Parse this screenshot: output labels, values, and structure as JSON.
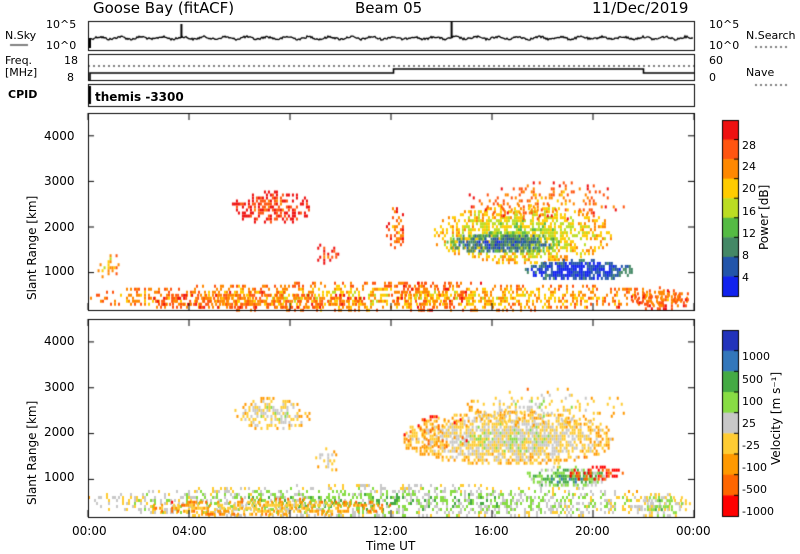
{
  "header": {
    "station": "Goose Bay (fitACF)",
    "beam": "Beam 05",
    "date": "11/Dec/2019"
  },
  "noise_panel": {
    "left_label": "N.Sky",
    "left_ticks": [
      "10^5",
      "10^0"
    ],
    "right_label": "N.Search",
    "right_ticks": [
      "10^5",
      "10^0"
    ]
  },
  "freq_panel": {
    "left_label_line1": "Freq.",
    "left_label_line2": "[MHz]",
    "left_ticks": [
      "18",
      "8"
    ],
    "right_label": "Nave",
    "right_ticks": [
      "60",
      "0"
    ]
  },
  "cpid": {
    "label": "CPID",
    "value": "themis -3300"
  },
  "y_axis": {
    "label": "Slant Range [km]",
    "ticks": [
      "4000",
      "3000",
      "2000",
      "1000"
    ]
  },
  "x_axis": {
    "label": "Time UT",
    "ticks": [
      "00:00",
      "04:00",
      "08:00",
      "12:00",
      "16:00",
      "20:00",
      "00:00"
    ]
  },
  "power_bar": {
    "title": "Power [dB]",
    "ticks": [
      "28",
      "24",
      "20",
      "16",
      "12",
      "8",
      "4"
    ],
    "colors": [
      "#ee1111",
      "#ff5511",
      "#ff8800",
      "#ffcc00",
      "#bbdd22",
      "#55bb44",
      "#448866",
      "#2255aa",
      "#1122ee"
    ]
  },
  "velocity_bar": {
    "title": "Velocity [m s⁻¹]",
    "ticks": [
      "1000",
      "500",
      "100",
      "25",
      "-25",
      "-100",
      "-500",
      "-1000"
    ],
    "colors": [
      "#2233bb",
      "#3377bb",
      "#44aa44",
      "#88dd44",
      "#c8c8c8",
      "#ffcc33",
      "#ff9900",
      "#ff6600",
      "#ff0000"
    ]
  },
  "chart_data": [
    {
      "type": "heatmap",
      "title": "Power [dB]",
      "xlabel": "Time UT",
      "ylabel": "Slant Range [km]",
      "xlim": [
        "00:00",
        "24:00"
      ],
      "ylim": [
        180,
        4500
      ],
      "blobs": [
        {
          "t0": 0.0,
          "t1": 23.7,
          "r0": 180,
          "r1": 800,
          "level": 5,
          "density": 0.45
        },
        {
          "t0": 0.3,
          "t1": 1.2,
          "r0": 900,
          "r1": 1600,
          "level": 5,
          "density": 0.25
        },
        {
          "t0": 2.5,
          "t1": 11.0,
          "r0": 250,
          "r1": 600,
          "level": 6,
          "density": 0.5
        },
        {
          "t0": 5.7,
          "t1": 8.8,
          "r0": 2100,
          "r1": 2800,
          "level": 7,
          "density": 0.55
        },
        {
          "t0": 9.0,
          "t1": 10.0,
          "r0": 1200,
          "r1": 1700,
          "level": 7,
          "density": 0.3
        },
        {
          "t0": 11.8,
          "t1": 12.5,
          "r0": 1500,
          "r1": 2500,
          "level": 6,
          "density": 0.35
        },
        {
          "t0": 13.7,
          "t1": 20.7,
          "r0": 1250,
          "r1": 2500,
          "level": 4,
          "density": 0.6
        },
        {
          "t0": 14.2,
          "t1": 18.6,
          "r0": 1450,
          "r1": 1900,
          "level": 1,
          "density": 0.8
        },
        {
          "t0": 17.3,
          "t1": 21.5,
          "r0": 850,
          "r1": 1300,
          "level": 0,
          "density": 0.85
        },
        {
          "t0": 15.0,
          "t1": 21.3,
          "r0": 2200,
          "r1": 3000,
          "level": 6,
          "density": 0.2
        },
        {
          "t0": 21.5,
          "t1": 23.8,
          "r0": 200,
          "r1": 700,
          "level": 6,
          "density": 0.45
        },
        {
          "t0": 12.0,
          "t1": 15.0,
          "r0": 200,
          "r1": 800,
          "level": 6,
          "density": 0.3
        }
      ]
    },
    {
      "type": "heatmap",
      "title": "Velocity [m s⁻¹]",
      "xlabel": "Time UT",
      "ylabel": "Slant Range [km]",
      "xlim": [
        "00:00",
        "24:00"
      ],
      "ylim": [
        180,
        4500
      ],
      "blobs": [
        {
          "t0": 0.0,
          "t1": 23.7,
          "r0": 180,
          "r1": 900,
          "level": 3,
          "density": 0.45
        },
        {
          "t0": 2.5,
          "t1": 12.0,
          "r0": 250,
          "r1": 600,
          "level": 5,
          "density": 0.55
        },
        {
          "t0": 5.8,
          "t1": 8.8,
          "r0": 2100,
          "r1": 2800,
          "level": 4,
          "density": 0.5
        },
        {
          "t0": 9.0,
          "t1": 10.0,
          "r0": 1200,
          "r1": 1700,
          "level": 4,
          "density": 0.35
        },
        {
          "t0": 12.5,
          "t1": 20.8,
          "r0": 1350,
          "r1": 2500,
          "level": 4,
          "density": 0.75
        },
        {
          "t0": 12.5,
          "t1": 15.5,
          "r0": 1600,
          "r1": 2400,
          "level": 6,
          "density": 0.12
        },
        {
          "t0": 17.3,
          "t1": 20.5,
          "r0": 850,
          "r1": 1300,
          "level": 2,
          "density": 0.75
        },
        {
          "t0": 19.0,
          "t1": 21.2,
          "r0": 1000,
          "r1": 1300,
          "level": 7,
          "density": 0.5
        },
        {
          "t0": 21.5,
          "t1": 23.8,
          "r0": 200,
          "r1": 700,
          "level": 3,
          "density": 0.45
        },
        {
          "t0": 15.0,
          "t1": 21.3,
          "r0": 2200,
          "r1": 3000,
          "level": 4,
          "density": 0.2
        }
      ]
    }
  ]
}
